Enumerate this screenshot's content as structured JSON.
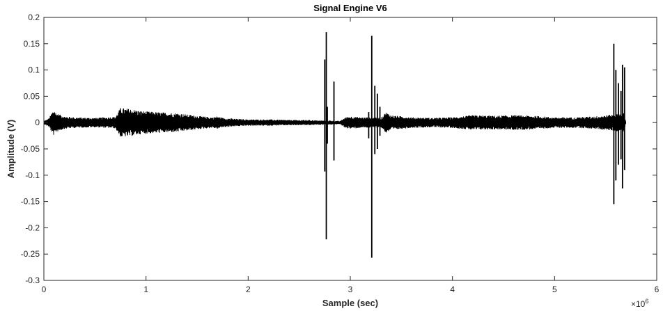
{
  "chart_data": {
    "type": "line",
    "title": "Signal Engine V6",
    "xlabel": "Sample (sec)",
    "ylabel": "Amplitude (V)",
    "x_exponent_label": "×10",
    "x_exponent_power": "6",
    "xlim": [
      0,
      6
    ],
    "ylim": [
      -0.3,
      0.2
    ],
    "x_ticks": [
      0,
      1,
      2,
      3,
      4,
      5,
      6
    ],
    "x_tick_labels": [
      "0",
      "1",
      "2",
      "3",
      "4",
      "5",
      "6"
    ],
    "y_ticks": [
      0.2,
      0.15,
      0.1,
      0.05,
      0,
      -0.05,
      -0.1,
      -0.15,
      -0.2,
      -0.25,
      -0.3
    ],
    "y_tick_labels": [
      "0.2",
      "0.15",
      "0.1",
      "0.05",
      "0",
      "-0.05",
      "-0.1",
      "-0.15",
      "-0.2",
      "-0.25",
      "-0.3"
    ],
    "grid": false,
    "line_color": "#000000",
    "envelope": [
      [
        0.0,
        0.003
      ],
      [
        0.05,
        0.008
      ],
      [
        0.08,
        0.02
      ],
      [
        0.1,
        0.025
      ],
      [
        0.12,
        0.018
      ],
      [
        0.2,
        0.012
      ],
      [
        0.3,
        0.01
      ],
      [
        0.5,
        0.009
      ],
      [
        0.7,
        0.011
      ],
      [
        0.75,
        0.028
      ],
      [
        0.85,
        0.026
      ],
      [
        0.95,
        0.022
      ],
      [
        1.1,
        0.02
      ],
      [
        1.3,
        0.018
      ],
      [
        1.5,
        0.013
      ],
      [
        1.65,
        0.01
      ],
      [
        1.7,
        0.012
      ],
      [
        1.75,
        0.009
      ],
      [
        1.9,
        0.007
      ],
      [
        2.0,
        0.006
      ],
      [
        2.2,
        0.006
      ],
      [
        2.4,
        0.005
      ],
      [
        2.6,
        0.005
      ],
      [
        2.7,
        0.004
      ],
      [
        2.8,
        0.004
      ],
      [
        2.9,
        0.003
      ],
      [
        2.95,
        0.01
      ],
      [
        3.0,
        0.012
      ],
      [
        3.1,
        0.01
      ],
      [
        3.2,
        0.01
      ],
      [
        3.3,
        0.009
      ],
      [
        3.35,
        0.02
      ],
      [
        3.4,
        0.014
      ],
      [
        3.6,
        0.01
      ],
      [
        3.8,
        0.009
      ],
      [
        4.0,
        0.01
      ],
      [
        4.2,
        0.014
      ],
      [
        4.4,
        0.013
      ],
      [
        4.6,
        0.014
      ],
      [
        4.8,
        0.013
      ],
      [
        5.0,
        0.01
      ],
      [
        5.2,
        0.01
      ],
      [
        5.4,
        0.012
      ],
      [
        5.55,
        0.015
      ],
      [
        5.68,
        0.018
      ],
      [
        5.7,
        0.0
      ]
    ],
    "spikes": [
      [
        2.75,
        0.12,
        -0.093
      ],
      [
        2.765,
        0.172,
        -0.222
      ],
      [
        2.775,
        0.03,
        -0.04
      ],
      [
        2.84,
        0.078,
        -0.072
      ],
      [
        3.18,
        0.02,
        -0.03
      ],
      [
        3.21,
        0.165,
        -0.257
      ],
      [
        3.24,
        0.07,
        -0.06
      ],
      [
        3.265,
        0.055,
        -0.05
      ],
      [
        3.29,
        0.03,
        -0.025
      ],
      [
        5.58,
        0.15,
        -0.155
      ],
      [
        5.6,
        0.1,
        -0.11
      ],
      [
        5.625,
        0.075,
        -0.08
      ],
      [
        5.65,
        0.06,
        -0.07
      ],
      [
        5.665,
        0.11,
        -0.125
      ],
      [
        5.685,
        0.105,
        -0.09
      ]
    ]
  }
}
